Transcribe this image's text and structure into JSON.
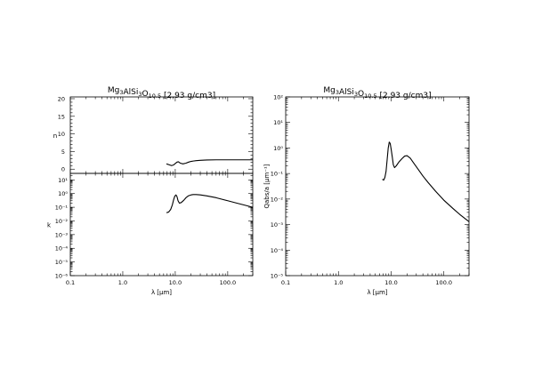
{
  "chart_data": [
    {
      "type": "line",
      "panel": "n",
      "title": "Mg3AlSi3O10.5 [2.93 g/cm3]",
      "title_parts": {
        "formula": "Mg3AlSi3O10.5",
        "density": "[2.93 g/cm3]"
      },
      "xlabel": "λ [μm]",
      "ylabel": "n",
      "xscale": "log",
      "yscale": "linear",
      "xlim": [
        0.1,
        300
      ],
      "ylim": [
        -1.2,
        20.5
      ],
      "xticks": [
        "0.1",
        "1.0",
        "10.0",
        "100.0"
      ],
      "yticks": [
        "0",
        "5",
        "10",
        "15",
        "20"
      ],
      "series": [
        {
          "x": [
            6.8,
            7.5,
            8.5,
            9.3,
            10.0,
            10.8,
            11.5,
            12.5,
            14.0,
            16.0,
            18.0,
            20.0,
            22.0,
            25.0,
            30.0,
            40.0,
            60.0,
            100.0,
            200.0,
            300.0
          ],
          "y": [
            1.5,
            1.3,
            1.0,
            1.2,
            1.6,
            2.0,
            2.1,
            1.7,
            1.5,
            1.7,
            2.0,
            2.2,
            2.3,
            2.4,
            2.5,
            2.6,
            2.65,
            2.65,
            2.65,
            2.65
          ]
        }
      ]
    },
    {
      "type": "line",
      "panel": "k",
      "xlabel": "λ [μm]",
      "ylabel": "k",
      "xscale": "log",
      "yscale": "log",
      "xlim": [
        0.1,
        300
      ],
      "ylim": [
        1e-06,
        30
      ],
      "xticks": [
        "0.1",
        "1.0",
        "10.0",
        "100.0"
      ],
      "yticks": [
        "10¹",
        "10⁰",
        "10⁻¹",
        "10⁻²",
        "10⁻³",
        "10⁻⁴",
        "10⁻⁵",
        "10⁻⁶"
      ],
      "series": [
        {
          "x": [
            6.8,
            7.5,
            8.2,
            8.8,
            9.3,
            9.8,
            10.3,
            10.8,
            11.3,
            12.0,
            13.0,
            14.5,
            16.0,
            18.0,
            20.0,
            22.0,
            25.0,
            30.0,
            40.0,
            60.0,
            100.0,
            150.0,
            200.0,
            300.0
          ],
          "y": [
            0.04,
            0.045,
            0.07,
            0.15,
            0.35,
            0.65,
            0.8,
            0.6,
            0.3,
            0.2,
            0.22,
            0.32,
            0.5,
            0.7,
            0.8,
            0.85,
            0.85,
            0.8,
            0.68,
            0.5,
            0.3,
            0.2,
            0.15,
            0.1
          ]
        }
      ]
    },
    {
      "type": "line",
      "panel": "Qabs",
      "title": "Mg3AlSi3O10.5 [2.93 g/cm3]",
      "title_parts": {
        "formula": "Mg3AlSi3O10.5",
        "density": "[2.93 g/cm3]"
      },
      "xlabel": "λ [μm]",
      "ylabel": "Qabs/a [μm⁻¹]",
      "xscale": "log",
      "yscale": "log",
      "xlim": [
        0.1,
        300
      ],
      "ylim": [
        1e-05,
        100
      ],
      "xticks": [
        "0.1",
        "1.0",
        "10.0",
        "100.0"
      ],
      "yticks": [
        "10²",
        "10¹",
        "10⁰",
        "10⁻¹",
        "10⁻²",
        "10⁻³",
        "10⁻⁴",
        "10⁻⁵"
      ],
      "series": [
        {
          "x": [
            6.8,
            7.2,
            7.6,
            8.0,
            8.4,
            8.8,
            9.2,
            9.6,
            10.0,
            10.5,
            11.0,
            11.6,
            12.5,
            14.0,
            16.0,
            18.0,
            20.0,
            23.0,
            27.0,
            33.0,
            40.0,
            50.0,
            70.0,
            100.0,
            150.0,
            200.0,
            300.0
          ],
          "y": [
            0.06,
            0.055,
            0.07,
            0.12,
            0.35,
            1.0,
            1.7,
            1.5,
            0.9,
            0.45,
            0.22,
            0.17,
            0.2,
            0.28,
            0.38,
            0.48,
            0.5,
            0.4,
            0.25,
            0.14,
            0.08,
            0.045,
            0.02,
            0.009,
            0.0042,
            0.0025,
            0.0013
          ]
        }
      ]
    }
  ]
}
